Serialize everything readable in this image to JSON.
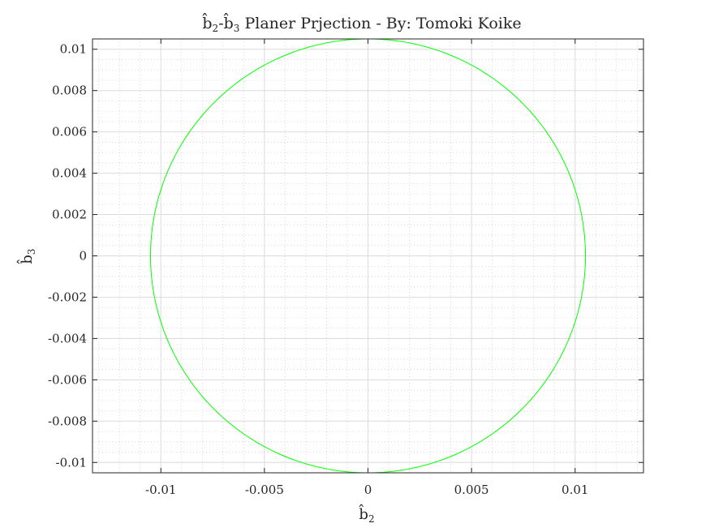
{
  "chart_data": {
    "type": "line",
    "title": {
      "prefix_symbol_1": "b̂",
      "sub_1": "2",
      "dash": "-",
      "prefix_symbol_2": "b̂",
      "sub_2": "3",
      "rest": " Planer Prjection - By: Tomoki Koike"
    },
    "xlabel": {
      "symbol": "b̂",
      "sub": "2"
    },
    "ylabel": {
      "symbol": "b̂",
      "sub": "3"
    },
    "xlim": [
      -0.0133,
      0.0133
    ],
    "ylim": [
      -0.0105,
      0.0105
    ],
    "x_ticks": [
      -0.01,
      -0.005,
      0,
      0.005,
      0.01
    ],
    "x_tick_labels": [
      "-0.01",
      "-0.005",
      "0",
      "0.005",
      "0.01"
    ],
    "y_ticks": [
      -0.01,
      -0.008,
      -0.006,
      -0.004,
      -0.002,
      0,
      0.002,
      0.004,
      0.006,
      0.008,
      0.01
    ],
    "y_tick_labels": [
      "-0.01",
      "-0.008",
      "-0.006",
      "-0.004",
      "-0.002",
      "0",
      "0.002",
      "0.004",
      "0.006",
      "0.008",
      "0.01"
    ],
    "grid": true,
    "minor_grid": true,
    "series": [
      {
        "shape": "circle",
        "center": [
          0,
          0
        ],
        "radius": 0.0105,
        "color": "#00ff00"
      }
    ]
  }
}
